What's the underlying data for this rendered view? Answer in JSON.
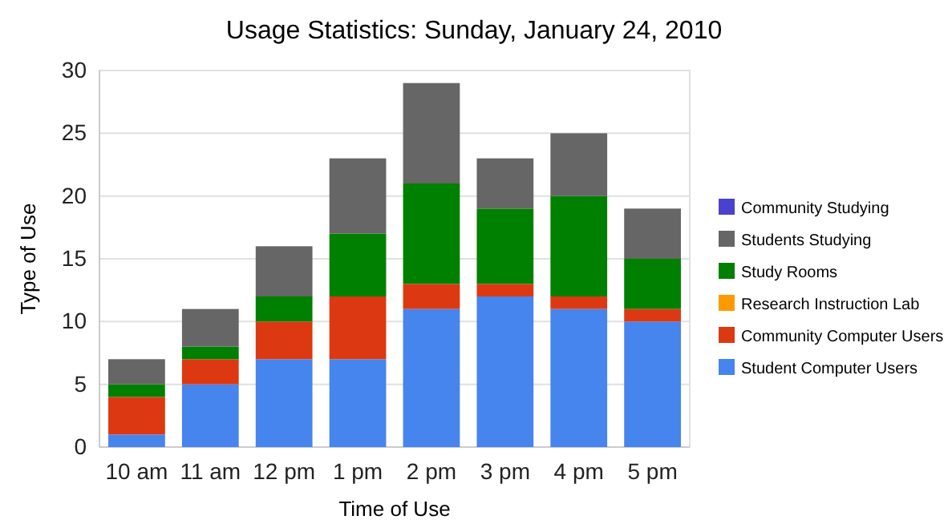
{
  "chart_data": {
    "type": "bar",
    "title": "Usage Statistics: Sunday, January 24, 2010",
    "xlabel": "Time of Use",
    "ylabel": "Type of Use",
    "categories": [
      "10 am",
      "11 am",
      "12 pm",
      "1 pm",
      "2 pm",
      "3 pm",
      "4 pm",
      "5 pm"
    ],
    "stacked": true,
    "series": [
      {
        "name": "Student Computer Users",
        "color": "#4684ee",
        "values": [
          1,
          5,
          7,
          7,
          11,
          12,
          11,
          10
        ]
      },
      {
        "name": "Community Computer Users",
        "color": "#dc3912",
        "values": [
          3,
          2,
          3,
          5,
          2,
          1,
          1,
          1
        ]
      },
      {
        "name": "Research Instruction Lab",
        "color": "#ff9900",
        "values": [
          0,
          0,
          0,
          0,
          0,
          0,
          0,
          0
        ]
      },
      {
        "name": "Study Rooms",
        "color": "#008000",
        "values": [
          1,
          1,
          2,
          5,
          8,
          6,
          8,
          4
        ]
      },
      {
        "name": "Students Studying",
        "color": "#666666",
        "values": [
          2,
          3,
          4,
          6,
          8,
          4,
          5,
          4
        ]
      },
      {
        "name": "Community Studying",
        "color": "#4942cc",
        "values": [
          0,
          0,
          0,
          0,
          0,
          0,
          0,
          0
        ]
      }
    ],
    "ylim": [
      0,
      30
    ],
    "yticks": [
      0,
      5,
      10,
      15,
      20,
      25,
      30
    ],
    "grid": "y",
    "legend": "right"
  }
}
